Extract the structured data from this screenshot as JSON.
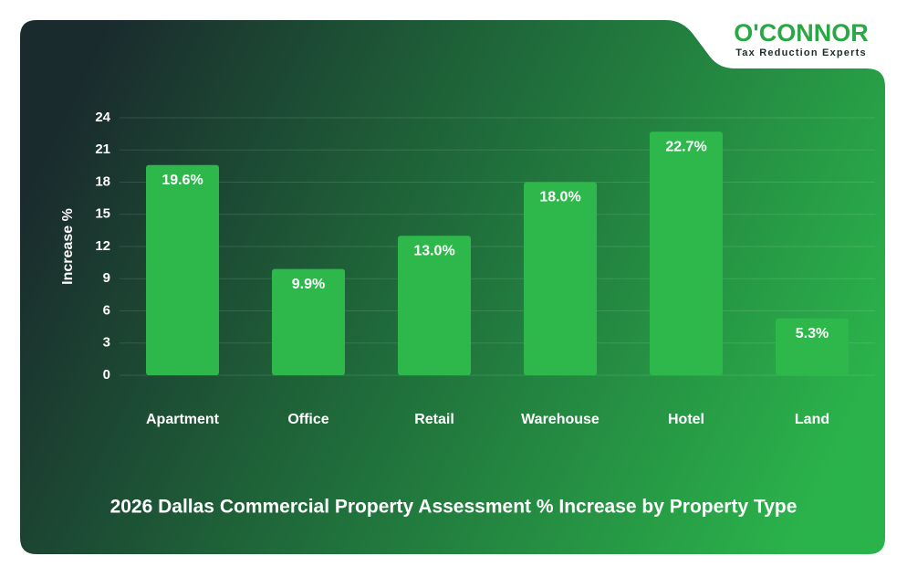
{
  "logo": {
    "name": "O'CONNOR",
    "tagline": "Tax Reduction Experts"
  },
  "chart_data": {
    "type": "bar",
    "title": "2026 Dallas Commercial Property Assessment % Increase by Property Type",
    "y_label": "Increase %",
    "categories": [
      "Apartment",
      "Office",
      "Retail",
      "Warehouse",
      "Hotel",
      "Land"
    ],
    "values": [
      19.6,
      9.9,
      13.0,
      18.0,
      22.7,
      5.3
    ],
    "value_labels": [
      "19.6%",
      "9.9%",
      "13.0%",
      "18.0%",
      "22.7%",
      "5.3%"
    ],
    "color": "#2eb84c",
    "ylim": [
      0,
      24
    ],
    "yticks": [
      0,
      3,
      6,
      9,
      12,
      15,
      18,
      21,
      24
    ],
    "grid": true
  }
}
